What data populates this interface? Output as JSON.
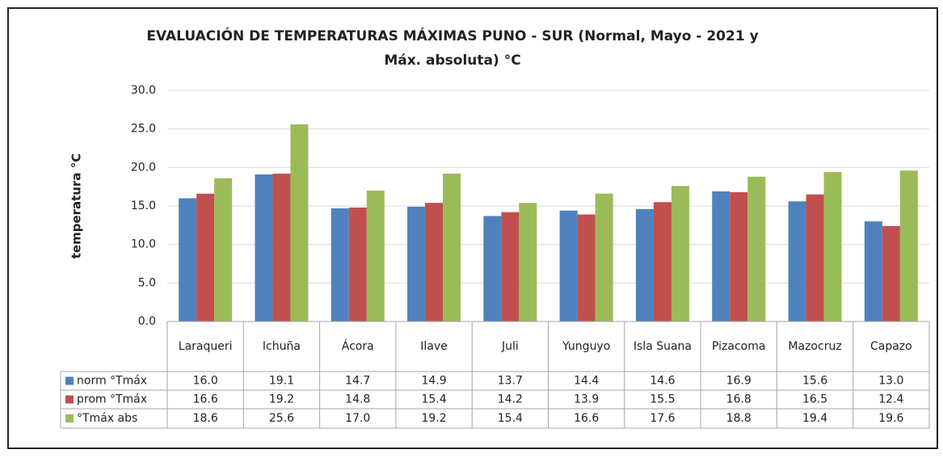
{
  "chart_data": {
    "type": "bar",
    "title": "EVALUACIÓN DE TEMPERATURAS MÁXIMAS PUNO - SUR  (Normal, Mayo - 2021 y Máx. absoluta) °C",
    "y_label": "temperatura °C",
    "categories": [
      "Laraqueri",
      "Ichuña",
      "Ácora",
      "Ilave",
      "Juli",
      "Yunguyo",
      "Isla Suana",
      "Pizacoma",
      "Mazocruz",
      "Capazo"
    ],
    "series": [
      {
        "name": "norm °Tmáx",
        "color": "#4f81bd",
        "values": [
          16.0,
          19.1,
          14.7,
          14.9,
          13.7,
          14.4,
          14.6,
          16.9,
          15.6,
          13.0
        ],
        "value_labels": [
          "16.0",
          "19.1",
          "14.7",
          "14.9",
          "13.7",
          "14.4",
          "14.6",
          "16.9",
          "15.6",
          "13.0"
        ]
      },
      {
        "name": "prom °Tmáx",
        "color": "#c0504d",
        "values": [
          16.6,
          19.2,
          14.8,
          15.4,
          14.2,
          13.9,
          15.5,
          16.8,
          16.5,
          12.4
        ],
        "value_labels": [
          "16.6",
          "19.2",
          "14.8",
          "15.4",
          "14.2",
          "13.9",
          "15.5",
          "16.8",
          "16.5",
          "12.4"
        ]
      },
      {
        "name": "°Tmáx abs",
        "color": "#9bbb59",
        "values": [
          18.6,
          25.6,
          17.0,
          19.2,
          15.4,
          16.6,
          17.6,
          18.8,
          19.4,
          19.6
        ],
        "value_labels": [
          "18.6",
          "25.6",
          "17.0",
          "19.2",
          "15.4",
          "16.6",
          "17.6",
          "18.8",
          "19.4",
          "19.6"
        ]
      }
    ],
    "ylim": [
      0,
      30
    ],
    "yticks": [
      {
        "value": 0,
        "label": "0.0"
      },
      {
        "value": 5,
        "label": "5.0"
      },
      {
        "value": 10,
        "label": "10.0"
      },
      {
        "value": 15,
        "label": "15.0"
      },
      {
        "value": 20,
        "label": "20.0"
      },
      {
        "value": 25,
        "label": "25.0"
      },
      {
        "value": 30,
        "label": "30.0"
      }
    ],
    "grid": true
  }
}
